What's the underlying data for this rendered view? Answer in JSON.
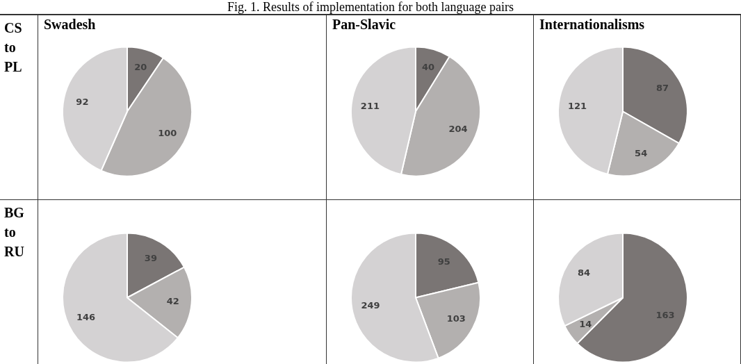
{
  "chart_data": [
    {
      "type": "other",
      "title": "Fig. 1. Results of implementation for both language pairs"
    },
    {
      "type": "pie",
      "title": "Swadesh",
      "ylabel": "CS to PL",
      "categories": [
        null,
        null,
        null
      ],
      "values": [
        20,
        100,
        92
      ],
      "colors": [
        "#7a7574",
        "#b3b0af",
        "#d4d2d3"
      ],
      "data_labels": true
    },
    {
      "type": "pie",
      "title": "Pan-Slavic",
      "categories": [
        null,
        null,
        null
      ],
      "values": [
        40,
        204,
        211
      ],
      "colors": [
        "#7a7574",
        "#b3b0af",
        "#d4d2d3"
      ],
      "data_labels": true
    },
    {
      "type": "pie",
      "title": "Internationalisms",
      "categories": [
        null,
        null,
        null
      ],
      "values": [
        87,
        54,
        121
      ],
      "colors": [
        "#7a7574",
        "#b3b0af",
        "#d4d2d3"
      ],
      "data_labels": true
    },
    {
      "type": "pie",
      "ylabel": "BG to RU",
      "categories": [
        null,
        null,
        null
      ],
      "values": [
        39,
        42,
        146
      ],
      "colors": [
        "#7a7574",
        "#b3b0af",
        "#d4d2d3"
      ],
      "data_labels": true
    },
    {
      "type": "pie",
      "categories": [
        null,
        null,
        null
      ],
      "values": [
        95,
        103,
        249
      ],
      "colors": [
        "#7a7574",
        "#b3b0af",
        "#d4d2d3"
      ],
      "data_labels": true
    },
    {
      "type": "pie",
      "categories": [
        null,
        null,
        null
      ],
      "values": [
        163,
        14,
        84
      ],
      "colors": [
        "#7a7574",
        "#b3b0af",
        "#d4d2d3"
      ],
      "data_labels": true
    }
  ]
}
